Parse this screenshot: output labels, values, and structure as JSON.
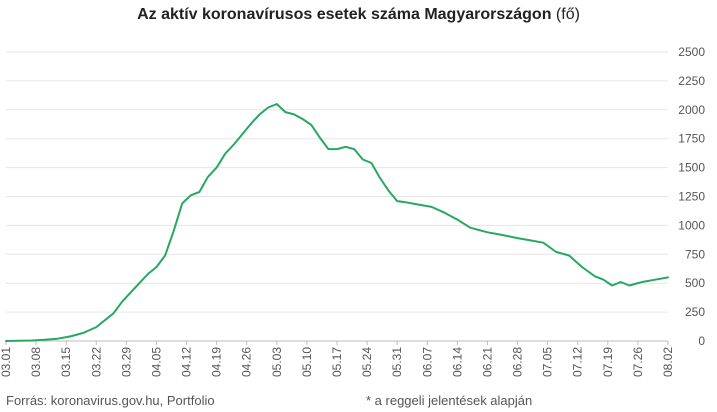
{
  "chart_data": {
    "type": "line",
    "title": "Az aktív koronavírusos esetek száma Magyarországon",
    "title_unit": "(fő)",
    "source": "Forrás: koronavirus.gov.hu, Portfolio",
    "note": "* a reggeli jelentések alapján",
    "ylim": [
      0,
      2500
    ],
    "yticks": [
      0,
      250,
      500,
      750,
      1000,
      1250,
      1500,
      1750,
      2000,
      2250,
      2500
    ],
    "xticks": [
      "03.01",
      "03.08",
      "03.15",
      "03.22",
      "03.29",
      "04.05",
      "04.12",
      "04.19",
      "04.26",
      "05.03",
      "05.10",
      "05.17",
      "05.24",
      "05.31",
      "06.07",
      "06.14",
      "06.21",
      "06.28",
      "07.05",
      "07.12",
      "07.19",
      "07.26",
      "08.02"
    ],
    "grid": true,
    "line_color": "#27a860",
    "series": [
      {
        "x": [
          "03.01",
          "03.04",
          "03.07",
          "03.10",
          "03.13",
          "03.16",
          "03.19",
          "03.22",
          "03.24",
          "03.26",
          "03.28",
          "03.30",
          "04.01",
          "04.03",
          "04.05",
          "04.07",
          "04.09",
          "04.11",
          "04.13",
          "04.15",
          "04.17",
          "04.19",
          "04.21",
          "04.23",
          "04.25",
          "04.27",
          "04.29",
          "05.01",
          "05.03",
          "05.05",
          "05.07",
          "05.09",
          "05.11",
          "05.13",
          "05.15",
          "05.17",
          "05.19",
          "05.21",
          "05.23",
          "05.25",
          "05.27",
          "05.29",
          "05.31",
          "06.02",
          "06.05",
          "06.08",
          "06.11",
          "06.14",
          "06.17",
          "06.21",
          "06.24",
          "06.28",
          "07.01",
          "07.04",
          "07.07",
          "07.10",
          "07.13",
          "07.16",
          "07.18",
          "07.20",
          "07.22",
          "07.24",
          "07.27",
          "07.30",
          "08.02"
        ],
        "values": [
          0,
          2,
          4,
          10,
          20,
          40,
          70,
          120,
          180,
          240,
          340,
          420,
          500,
          580,
          640,
          740,
          950,
          1190,
          1260,
          1290,
          1420,
          1500,
          1620,
          1700,
          1790,
          1880,
          1960,
          2020,
          2050,
          1980,
          1960,
          1920,
          1870,
          1760,
          1660,
          1660,
          1680,
          1660,
          1570,
          1540,
          1410,
          1300,
          1210,
          1200,
          1180,
          1160,
          1110,
          1050,
          980,
          940,
          920,
          890,
          870,
          850,
          770,
          740,
          640,
          560,
          530,
          480,
          510,
          480,
          510,
          530,
          550
        ]
      }
    ]
  }
}
